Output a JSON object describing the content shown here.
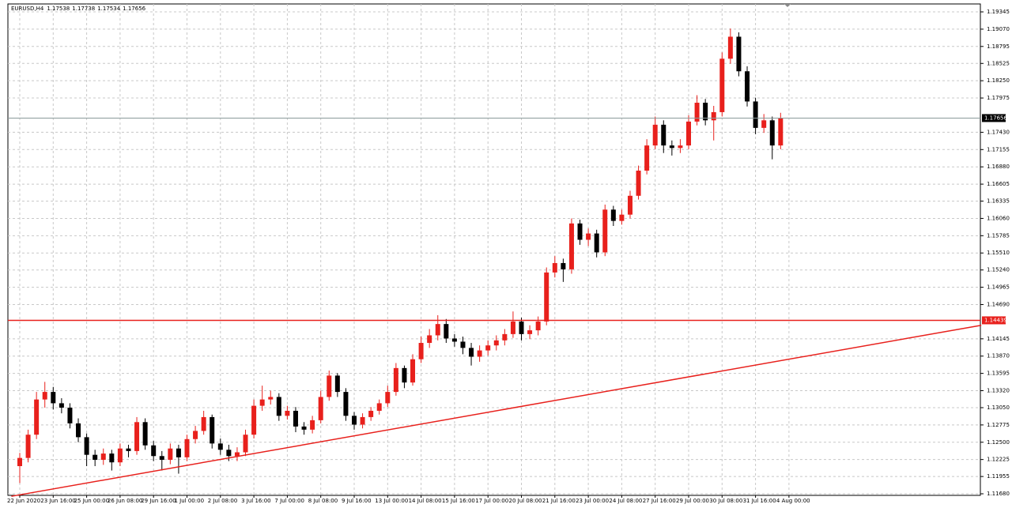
{
  "chart_data": {
    "type": "candlestick",
    "title": "EURUSD,H4",
    "header_ohlc": [
      1.17538,
      1.17738,
      1.17534,
      1.17656
    ],
    "last_price": 1.17656,
    "level_price": 1.14439,
    "up_color": "#e8201c",
    "down_color": "#000000",
    "line_color": "#e8201c",
    "grid": true,
    "ylim": [
      1.11655,
      1.19471
    ],
    "yticks": [
      {
        "value": 1.19345,
        "label": "1.19345"
      },
      {
        "value": 1.1907,
        "label": "1.19070"
      },
      {
        "value": 1.18795,
        "label": "1.18795"
      },
      {
        "value": 1.18525,
        "label": "1.18525"
      },
      {
        "value": 1.1825,
        "label": "1.18250"
      },
      {
        "value": 1.17975,
        "label": "1.17975"
      },
      {
        "value": 1.1743,
        "label": "1.17430"
      },
      {
        "value": 1.17155,
        "label": "1.17155"
      },
      {
        "value": 1.1688,
        "label": "1.16880"
      },
      {
        "value": 1.16605,
        "label": "1.16605"
      },
      {
        "value": 1.16335,
        "label": "1.16335"
      },
      {
        "value": 1.1606,
        "label": "1.16060"
      },
      {
        "value": 1.15785,
        "label": "1.15785"
      },
      {
        "value": 1.1551,
        "label": "1.15510"
      },
      {
        "value": 1.1524,
        "label": "1.15240"
      },
      {
        "value": 1.14965,
        "label": "1.14965"
      },
      {
        "value": 1.1469,
        "label": "1.14690"
      },
      {
        "value": 1.14145,
        "label": "1.14145"
      },
      {
        "value": 1.1387,
        "label": "1.13870"
      },
      {
        "value": 1.13595,
        "label": "1.13595"
      },
      {
        "value": 1.1332,
        "label": "1.13320"
      },
      {
        "value": 1.1305,
        "label": "1.13050"
      },
      {
        "value": 1.12775,
        "label": "1.12775"
      },
      {
        "value": 1.125,
        "label": "1.12500"
      },
      {
        "value": 1.12225,
        "label": "1.12225"
      },
      {
        "value": 1.11955,
        "label": "1.11955"
      },
      {
        "value": 1.1168,
        "label": "1.11680"
      }
    ],
    "xticks": [
      {
        "value": 0,
        "label": "22 Jun 2020"
      },
      {
        "value": 4,
        "label": "23 Jun 16:00"
      },
      {
        "value": 8,
        "label": "25 Jun 00:00"
      },
      {
        "value": 12,
        "label": "26 Jun 08:00"
      },
      {
        "value": 16,
        "label": "29 Jun 16:00"
      },
      {
        "value": 20,
        "label": "1 Jul 00:00"
      },
      {
        "value": 24,
        "label": "2 Jul 08:00"
      },
      {
        "value": 28,
        "label": "3 Jul 16:00"
      },
      {
        "value": 32,
        "label": "7 Jul 00:00"
      },
      {
        "value": 36,
        "label": "8 Jul 08:00"
      },
      {
        "value": 40,
        "label": "9 Jul 16:00"
      },
      {
        "value": 44,
        "label": "13 Jul 00:00"
      },
      {
        "value": 48,
        "label": "14 Jul 08:00"
      },
      {
        "value": 52,
        "label": "15 Jul 16:00"
      },
      {
        "value": 56,
        "label": "17 Jul 00:00"
      },
      {
        "value": 60,
        "label": "20 Jul 08:00"
      },
      {
        "value": 64,
        "label": "21 Jul 16:00"
      },
      {
        "value": 68,
        "label": "23 Jul 00:00"
      },
      {
        "value": 72,
        "label": "24 Jul 08:00"
      },
      {
        "value": 76,
        "label": "27 Jul 16:00"
      },
      {
        "value": 80,
        "label": "29 Jul 00:00"
      },
      {
        "value": 84,
        "label": "30 Jul 08:00"
      },
      {
        "value": 88,
        "label": "31 Jul 16:00"
      },
      {
        "value": 92,
        "label": "4 Aug 00:00"
      }
    ],
    "trendline": {
      "x": [
        -1,
        115
      ],
      "y": [
        1.1164,
        1.1436
      ]
    },
    "open": [
      1.1212,
      1.1225,
      1.1262,
      1.1318,
      1.133,
      1.1312,
      1.1305,
      1.128,
      1.1258,
      1.123,
      1.1222,
      1.1232,
      1.1218,
      1.124,
      1.1236,
      1.1282,
      1.1245,
      1.1228,
      1.1222,
      1.124,
      1.1226,
      1.1255,
      1.1268,
      1.129,
      1.1248,
      1.1238,
      1.1228,
      1.1234,
      1.1262,
      1.1308,
      1.1318,
      1.1322,
      1.1292,
      1.13,
      1.1275,
      1.127,
      1.1285,
      1.1322,
      1.1356,
      1.133,
      1.1292,
      1.1278,
      1.129,
      1.13,
      1.1312,
      1.133,
      1.1368,
      1.1345,
      1.1382,
      1.1408,
      1.142,
      1.1438,
      1.1415,
      1.141,
      1.14,
      1.1386,
      1.1396,
      1.1404,
      1.1412,
      1.1422,
      1.1442,
      1.1422,
      1.1428,
      1.1442,
      1.152,
      1.1535,
      1.1525,
      1.1598,
      1.1572,
      1.1582,
      1.1552,
      1.162,
      1.1602,
      1.1612,
      1.1642,
      1.1682,
      1.1722,
      1.1755,
      1.1722,
      1.1718,
      1.1722,
      1.176,
      1.179,
      1.1762,
      1.1775,
      1.186,
      1.1895,
      1.184,
      1.1792,
      1.175,
      1.1762,
      1.1722
    ],
    "high": [
      1.1233,
      1.127,
      1.133,
      1.1346,
      1.1338,
      1.132,
      1.1312,
      1.1288,
      1.1264,
      1.1238,
      1.124,
      1.1238,
      1.1248,
      1.1246,
      1.129,
      1.1288,
      1.1252,
      1.1236,
      1.1248,
      1.1246,
      1.1262,
      1.1276,
      1.13,
      1.1294,
      1.1256,
      1.1246,
      1.1242,
      1.127,
      1.1318,
      1.134,
      1.1332,
      1.1328,
      1.1308,
      1.1306,
      1.1282,
      1.1292,
      1.1332,
      1.1364,
      1.136,
      1.1336,
      1.1298,
      1.1296,
      1.1306,
      1.1318,
      1.134,
      1.1376,
      1.1372,
      1.139,
      1.1418,
      1.143,
      1.1452,
      1.1446,
      1.1422,
      1.1418,
      1.1408,
      1.1404,
      1.1412,
      1.142,
      1.143,
      1.1458,
      1.1448,
      1.1436,
      1.145,
      1.1528,
      1.1546,
      1.1542,
      1.1606,
      1.1604,
      1.159,
      1.1588,
      1.1628,
      1.1626,
      1.162,
      1.165,
      1.169,
      1.1732,
      1.1768,
      1.1762,
      1.173,
      1.1732,
      1.177,
      1.1802,
      1.1796,
      1.1785,
      1.187,
      1.1908,
      1.1902,
      1.1848,
      1.1798,
      1.1772,
      1.1768,
      1.1774
    ],
    "low": [
      1.1185,
      1.1218,
      1.1255,
      1.1305,
      1.1302,
      1.1296,
      1.1272,
      1.125,
      1.1212,
      1.1212,
      1.1214,
      1.1205,
      1.1212,
      1.1226,
      1.123,
      1.1238,
      1.122,
      1.1205,
      1.1215,
      1.12,
      1.122,
      1.1248,
      1.1262,
      1.124,
      1.123,
      1.122,
      1.122,
      1.1228,
      1.1256,
      1.13,
      1.131,
      1.1284,
      1.1286,
      1.1266,
      1.1262,
      1.1264,
      1.128,
      1.1316,
      1.1322,
      1.1284,
      1.127,
      1.1272,
      1.1284,
      1.1294,
      1.1306,
      1.1324,
      1.1336,
      1.134,
      1.1376,
      1.14,
      1.1412,
      1.1408,
      1.1402,
      1.139,
      1.1372,
      1.1378,
      1.1388,
      1.1396,
      1.1404,
      1.1416,
      1.1412,
      1.1414,
      1.142,
      1.1436,
      1.1512,
      1.1505,
      1.1518,
      1.1564,
      1.1562,
      1.1544,
      1.1546,
      1.1594,
      1.1596,
      1.1606,
      1.1636,
      1.1676,
      1.1716,
      1.171,
      1.1706,
      1.171,
      1.1716,
      1.1754,
      1.1754,
      1.173,
      1.1768,
      1.1852,
      1.1832,
      1.1784,
      1.174,
      1.1742,
      1.17,
      1.1716
    ],
    "close": [
      1.1225,
      1.1262,
      1.1318,
      1.133,
      1.1312,
      1.1305,
      1.128,
      1.1258,
      1.123,
      1.1222,
      1.1232,
      1.1218,
      1.124,
      1.1236,
      1.1282,
      1.1245,
      1.1228,
      1.1222,
      1.124,
      1.1226,
      1.1255,
      1.1268,
      1.129,
      1.1248,
      1.1238,
      1.1228,
      1.1234,
      1.1262,
      1.1308,
      1.1318,
      1.1322,
      1.1292,
      1.13,
      1.1275,
      1.127,
      1.1285,
      1.1322,
      1.1356,
      1.133,
      1.1292,
      1.1278,
      1.129,
      1.13,
      1.1312,
      1.133,
      1.1368,
      1.1345,
      1.1382,
      1.1408,
      1.142,
      1.1438,
      1.1415,
      1.141,
      1.14,
      1.1386,
      1.1396,
      1.1404,
      1.1412,
      1.1422,
      1.1442,
      1.1422,
      1.1428,
      1.1442,
      1.152,
      1.1535,
      1.1525,
      1.1598,
      1.1572,
      1.1582,
      1.1552,
      1.162,
      1.1602,
      1.1612,
      1.1642,
      1.1682,
      1.1722,
      1.1755,
      1.1722,
      1.1718,
      1.1722,
      1.176,
      1.179,
      1.1762,
      1.1775,
      1.186,
      1.1895,
      1.184,
      1.1792,
      1.175,
      1.1762,
      1.1722,
      1.1766
    ]
  }
}
